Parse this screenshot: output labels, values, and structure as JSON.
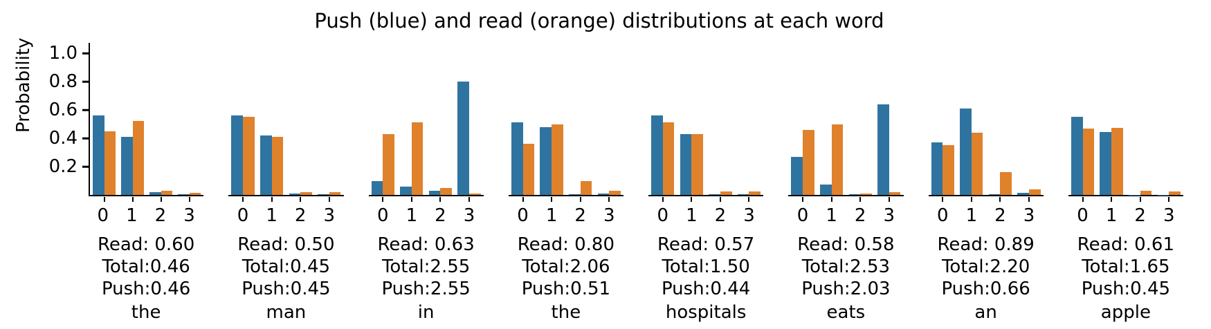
{
  "title": "Push (blue) and read (orange) distributions at each word",
  "y_axis": {
    "label": "Probability",
    "ticks": [
      {
        "label": "1.0",
        "value": 1.0
      },
      {
        "label": "0.8",
        "value": 0.8
      },
      {
        "label": "0.6",
        "value": 0.6
      },
      {
        "label": "0.4",
        "value": 0.4
      },
      {
        "label": "0.2",
        "value": 0.2
      }
    ]
  },
  "colors": {
    "push_blue": "#2f74a0",
    "read_orange": "#e0812c"
  },
  "chart_data": {
    "type": "bar",
    "title": "Push (blue) and read (orange) distributions at each word",
    "ylabel": "Probability",
    "ylim": [
      0,
      1.0
    ],
    "grid": false,
    "legend": "none (colors named in title)",
    "categories": [
      "0",
      "1",
      "2",
      "3"
    ],
    "series_names": [
      "push (blue)",
      "read (orange)"
    ],
    "subplots": [
      {
        "word": "the",
        "push": [
          0.56,
          0.41,
          0.02,
          0.005
        ],
        "read": [
          0.45,
          0.52,
          0.03,
          0.015
        ],
        "stats": [
          "Read: 0.60",
          "Total:0.46",
          "Push:0.46"
        ]
      },
      {
        "word": "man",
        "push": [
          0.56,
          0.42,
          0.01,
          0.004
        ],
        "read": [
          0.55,
          0.41,
          0.02,
          0.02
        ],
        "stats": [
          "Read: 0.50",
          "Total:0.45",
          "Push:0.45"
        ]
      },
      {
        "word": "in",
        "push": [
          0.1,
          0.06,
          0.03,
          0.8
        ],
        "read": [
          0.43,
          0.51,
          0.05,
          0.01
        ],
        "stats": [
          "Read: 0.63",
          "Total:2.55",
          "Push:2.55"
        ]
      },
      {
        "word": "the",
        "push": [
          0.51,
          0.48,
          0.004,
          0.01
        ],
        "read": [
          0.36,
          0.5,
          0.1,
          0.03
        ],
        "stats": [
          "Read: 0.80",
          "Total:2.06",
          "Push:0.51"
        ]
      },
      {
        "word": "hospitals",
        "push": [
          0.56,
          0.43,
          0.004,
          0.004
        ],
        "read": [
          0.51,
          0.43,
          0.025,
          0.025
        ],
        "stats": [
          "Read: 0.57",
          "Total:1.50",
          "Push:0.44"
        ]
      },
      {
        "word": "eats",
        "push": [
          0.27,
          0.075,
          0.004,
          0.64
        ],
        "read": [
          0.46,
          0.5,
          0.01,
          0.02
        ],
        "stats": [
          "Read: 0.58",
          "Total:2.53",
          "Push:2.03"
        ]
      },
      {
        "word": "an",
        "push": [
          0.37,
          0.61,
          0.006,
          0.015
        ],
        "read": [
          0.35,
          0.44,
          0.16,
          0.04
        ],
        "stats": [
          "Read: 0.89",
          "Total:2.20",
          "Push:0.66"
        ]
      },
      {
        "word": "apple",
        "push": [
          0.55,
          0.445,
          0.002,
          0.002
        ],
        "read": [
          0.47,
          0.475,
          0.03,
          0.025
        ],
        "stats": [
          "Read: 0.61",
          "Total:1.65",
          "Push:0.45"
        ]
      }
    ]
  }
}
